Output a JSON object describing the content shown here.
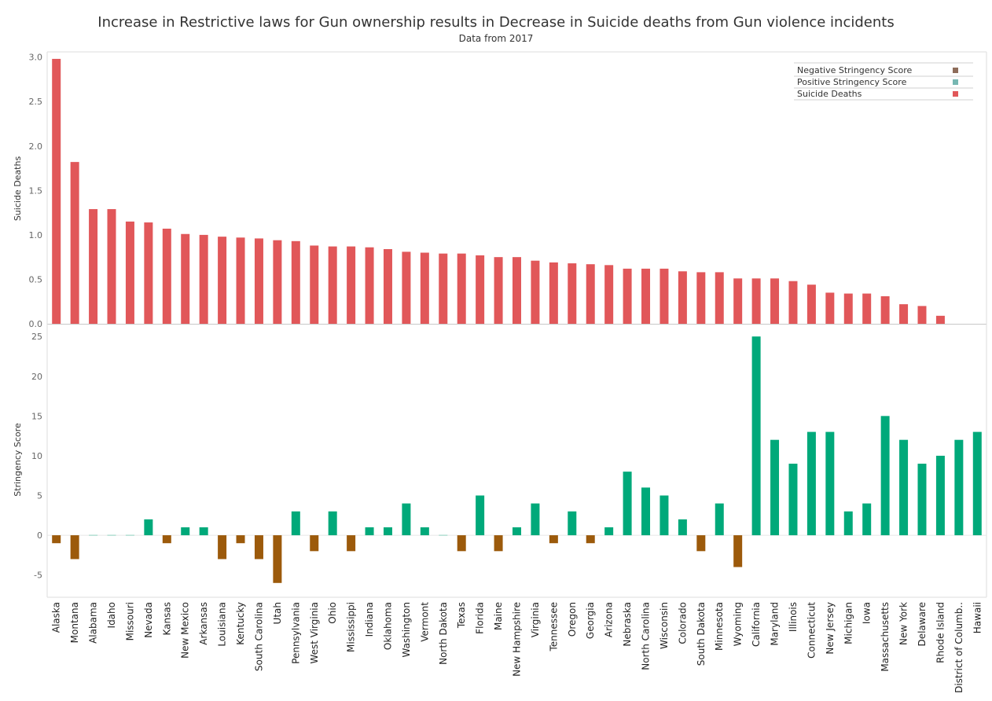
{
  "chart_data": {
    "type": "bar",
    "title": "Increase in Restrictive laws for Gun ownership results in Decrease in Suicide deaths from Gun violence incidents",
    "subtitle": "Data from 2017",
    "categories": [
      "Alaska",
      "Montana",
      "Alabama",
      "Idaho",
      "Missouri",
      "Nevada",
      "Kansas",
      "New Mexico",
      "Arkansas",
      "Louisiana",
      "Kentucky",
      "South Carolina",
      "Utah",
      "Pennsylvania",
      "West Virginia",
      "Ohio",
      "Mississippi",
      "Indiana",
      "Oklahoma",
      "Washington",
      "Vermont",
      "North Dakota",
      "Texas",
      "Florida",
      "Maine",
      "New Hampshire",
      "Virginia",
      "Tennessee",
      "Oregon",
      "Georgia",
      "Arizona",
      "Nebraska",
      "North Carolina",
      "Wisconsin",
      "Colorado",
      "South Dakota",
      "Minnesota",
      "Wyoming",
      "California",
      "Maryland",
      "Illinois",
      "Connecticut",
      "New Jersey",
      "Michigan",
      "Iowa",
      "Massachusetts",
      "New York",
      "Delaware",
      "Rhode Island",
      "District of Columb..",
      "Hawaii"
    ],
    "series": [
      {
        "name": "Suicide Deaths",
        "color": "#e15759",
        "values": [
          2.98,
          1.82,
          1.29,
          1.29,
          1.15,
          1.14,
          1.07,
          1.01,
          1.0,
          0.98,
          0.97,
          0.96,
          0.94,
          0.93,
          0.88,
          0.87,
          0.87,
          0.86,
          0.84,
          0.81,
          0.8,
          0.79,
          0.79,
          0.77,
          0.75,
          0.75,
          0.71,
          0.69,
          0.68,
          0.67,
          0.66,
          0.62,
          0.62,
          0.62,
          0.59,
          0.58,
          0.58,
          0.51,
          0.51,
          0.51,
          0.48,
          0.44,
          0.35,
          0.34,
          0.34,
          0.31,
          0.22,
          0.2,
          0.09,
          0,
          0
        ]
      },
      {
        "name": "Stringency Score",
        "values": [
          -1,
          -3,
          0,
          0,
          0,
          2,
          -1,
          1,
          1,
          -3,
          -1,
          -3,
          -6,
          3,
          -2,
          3,
          -2,
          1,
          1,
          4,
          1,
          0,
          -2,
          5,
          -2,
          1,
          4,
          -1,
          3,
          -1,
          1,
          8,
          6,
          5,
          2,
          -2,
          4,
          -4,
          25,
          12,
          9,
          13,
          13,
          3,
          4,
          15,
          12,
          9,
          10,
          12,
          13
        ]
      }
    ],
    "panels": [
      {
        "ylabel": "Suicide Deaths",
        "ylim": [
          0,
          3.05
        ],
        "ticks": [
          "0.0",
          "0.5",
          "1.0",
          "1.5",
          "2.0",
          "2.5",
          "3.0"
        ]
      },
      {
        "ylabel": "Stringency Score",
        "ylim": [
          -7.8,
          26.5
        ],
        "ticks": [
          "-5",
          "0",
          "5",
          "10",
          "15",
          "20",
          "25"
        ]
      }
    ],
    "legend": {
      "position": "top-right",
      "items": [
        {
          "label": "Negative Stringency Score",
          "color": "#8e6c5a"
        },
        {
          "label": "Positive Stringency Score",
          "color": "#76b7b2"
        },
        {
          "label": "Suicide Deaths",
          "color": "#e15759"
        }
      ]
    },
    "colors": {
      "negative": "#9c5a0b",
      "positive": "#00a97a",
      "suicide": "#e15759"
    },
    "grid": false
  }
}
